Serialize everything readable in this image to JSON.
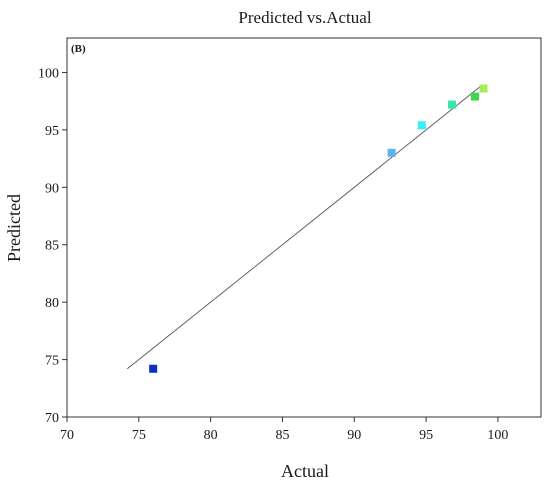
{
  "chart_data": {
    "type": "scatter",
    "title": "Predicted vs.Actual",
    "panel_label": "(B)",
    "xlabel": "Actual",
    "ylabel": "Predicted",
    "xlim": [
      70,
      103
    ],
    "ylim": [
      70,
      103
    ],
    "x_ticks": [
      70,
      75,
      80,
      85,
      90,
      95,
      100
    ],
    "y_ticks": [
      70,
      75,
      80,
      85,
      90,
      95,
      100
    ],
    "grid": false,
    "points": [
      {
        "x": 76.0,
        "y": 74.2,
        "color": "#0a2fc8"
      },
      {
        "x": 92.6,
        "y": 93.0,
        "color": "#5ab4f0"
      },
      {
        "x": 94.7,
        "y": 95.4,
        "color": "#34f0f0"
      },
      {
        "x": 96.8,
        "y": 97.2,
        "color": "#36e8a8"
      },
      {
        "x": 98.4,
        "y": 97.9,
        "color": "#3ed848"
      },
      {
        "x": 99.0,
        "y": 98.6,
        "color": "#a6ee58"
      }
    ],
    "fit_line": {
      "x_start": 74.2,
      "y_start": 74.2,
      "x_end": 98.8,
      "y_end": 98.8,
      "color": "#555555"
    }
  }
}
